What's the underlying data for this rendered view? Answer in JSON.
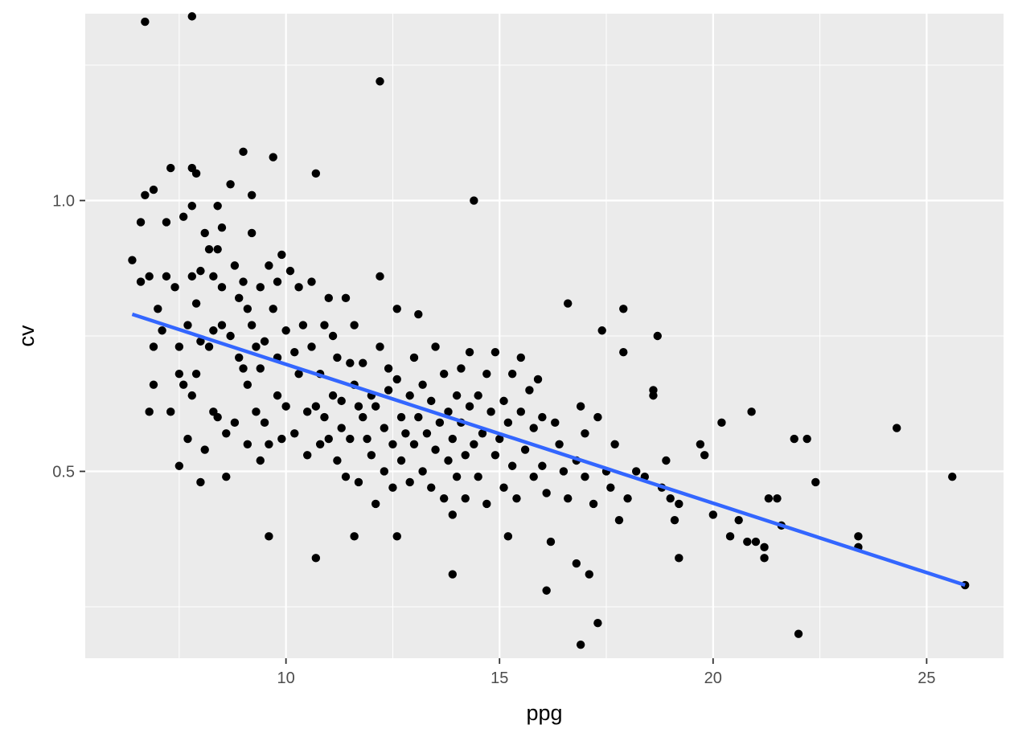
{
  "chart_data": {
    "type": "scatter",
    "title": "",
    "xlabel": "ppg",
    "ylabel": "cv",
    "xlim": [
      5.3,
      26.8
    ],
    "ylim": [
      0.155,
      1.345
    ],
    "xticks": [
      10,
      15,
      20,
      25
    ],
    "xtick_labels": [
      "10",
      "15",
      "20",
      "25"
    ],
    "yticks": [
      0.5,
      1.0
    ],
    "ytick_labels": [
      "0.5",
      "1.0"
    ],
    "grid": true,
    "legend": "none",
    "colors": {
      "panel": "#EBEBEB",
      "grid": "#FFFFFF",
      "points": "#000000",
      "trend": "#3366FF",
      "tick_text": "#4D4D4D"
    },
    "trend_line": {
      "x": [
        6.4,
        25.9
      ],
      "y": [
        0.79,
        0.29
      ]
    },
    "points": [
      [
        6.4,
        0.89
      ],
      [
        6.6,
        0.96
      ],
      [
        6.6,
        0.85
      ],
      [
        6.7,
        1.01
      ],
      [
        6.8,
        0.86
      ],
      [
        6.8,
        0.61
      ],
      [
        6.9,
        1.02
      ],
      [
        6.9,
        0.73
      ],
      [
        6.9,
        0.66
      ],
      [
        7.0,
        0.8
      ],
      [
        7.1,
        0.76
      ],
      [
        7.2,
        0.86
      ],
      [
        7.2,
        0.96
      ],
      [
        7.3,
        1.06
      ],
      [
        7.3,
        0.61
      ],
      [
        7.4,
        0.84
      ],
      [
        7.5,
        0.73
      ],
      [
        7.5,
        0.51
      ],
      [
        7.5,
        0.68
      ],
      [
        7.6,
        0.97
      ],
      [
        7.6,
        0.66
      ],
      [
        7.7,
        0.77
      ],
      [
        7.7,
        0.56
      ],
      [
        7.8,
        0.86
      ],
      [
        7.8,
        0.64
      ],
      [
        7.8,
        0.99
      ],
      [
        7.8,
        1.06
      ],
      [
        7.9,
        0.68
      ],
      [
        7.9,
        0.81
      ],
      [
        7.9,
        1.05
      ],
      [
        8.0,
        0.74
      ],
      [
        8.0,
        0.87
      ],
      [
        8.1,
        0.94
      ],
      [
        8.1,
        0.54
      ],
      [
        8.2,
        0.91
      ],
      [
        8.2,
        0.73
      ],
      [
        8.3,
        0.86
      ],
      [
        8.3,
        0.76
      ],
      [
        8.3,
        0.61
      ],
      [
        8.4,
        0.99
      ],
      [
        8.4,
        0.91
      ],
      [
        8.4,
        0.6
      ],
      [
        8.5,
        0.77
      ],
      [
        8.5,
        0.84
      ],
      [
        8.5,
        0.95
      ],
      [
        8.6,
        0.57
      ],
      [
        8.6,
        0.49
      ],
      [
        8.7,
        1.03
      ],
      [
        8.7,
        0.75
      ],
      [
        8.8,
        0.88
      ],
      [
        8.8,
        0.59
      ],
      [
        8.9,
        0.82
      ],
      [
        8.9,
        0.71
      ],
      [
        9.0,
        1.09
      ],
      [
        9.0,
        0.85
      ],
      [
        9.0,
        0.69
      ],
      [
        9.1,
        0.55
      ],
      [
        9.1,
        0.8
      ],
      [
        9.1,
        0.66
      ],
      [
        9.2,
        1.01
      ],
      [
        9.2,
        0.77
      ],
      [
        9.2,
        0.94
      ],
      [
        9.3,
        0.73
      ],
      [
        9.3,
        0.61
      ],
      [
        9.4,
        0.52
      ],
      [
        9.4,
        0.84
      ],
      [
        9.4,
        0.69
      ],
      [
        9.5,
        0.74
      ],
      [
        9.5,
        0.59
      ],
      [
        9.6,
        0.88
      ],
      [
        9.6,
        0.55
      ],
      [
        9.7,
        0.8
      ],
      [
        9.7,
        1.08
      ],
      [
        9.8,
        0.71
      ],
      [
        9.8,
        0.64
      ],
      [
        9.8,
        0.85
      ],
      [
        9.9,
        0.9
      ],
      [
        9.9,
        0.56
      ],
      [
        10.0,
        0.76
      ],
      [
        10.0,
        0.62
      ],
      [
        10.1,
        0.87
      ],
      [
        10.2,
        0.72
      ],
      [
        10.2,
        0.57
      ],
      [
        10.3,
        0.84
      ],
      [
        10.3,
        0.68
      ],
      [
        10.4,
        0.77
      ],
      [
        10.5,
        0.61
      ],
      [
        10.5,
        0.53
      ],
      [
        10.6,
        0.85
      ],
      [
        10.6,
        0.73
      ],
      [
        10.7,
        0.62
      ],
      [
        10.7,
        1.05
      ],
      [
        10.8,
        0.55
      ],
      [
        10.8,
        0.68
      ],
      [
        10.9,
        0.77
      ],
      [
        10.9,
        0.6
      ],
      [
        11.0,
        0.82
      ],
      [
        11.0,
        0.56
      ],
      [
        11.1,
        0.75
      ],
      [
        11.1,
        0.64
      ],
      [
        11.2,
        0.52
      ],
      [
        11.2,
        0.71
      ],
      [
        11.3,
        0.63
      ],
      [
        11.3,
        0.58
      ],
      [
        11.4,
        0.82
      ],
      [
        11.4,
        0.49
      ],
      [
        11.5,
        0.7
      ],
      [
        11.5,
        0.56
      ],
      [
        11.6,
        0.66
      ],
      [
        11.6,
        0.77
      ],
      [
        11.7,
        0.62
      ],
      [
        11.7,
        0.48
      ],
      [
        11.8,
        0.6
      ],
      [
        11.8,
        0.7
      ],
      [
        11.9,
        0.56
      ],
      [
        12.0,
        0.64
      ],
      [
        12.0,
        0.53
      ],
      [
        12.1,
        0.44
      ],
      [
        12.1,
        0.62
      ],
      [
        12.2,
        0.86
      ],
      [
        12.2,
        0.73
      ],
      [
        12.2,
        1.22
      ],
      [
        12.3,
        0.58
      ],
      [
        12.3,
        0.5
      ],
      [
        12.4,
        0.65
      ],
      [
        12.4,
        0.69
      ],
      [
        12.5,
        0.55
      ],
      [
        12.5,
        0.47
      ],
      [
        12.6,
        0.67
      ],
      [
        12.6,
        0.8
      ],
      [
        12.7,
        0.6
      ],
      [
        12.7,
        0.52
      ],
      [
        12.8,
        0.57
      ],
      [
        12.9,
        0.64
      ],
      [
        12.9,
        0.48
      ],
      [
        13.0,
        0.71
      ],
      [
        13.0,
        0.55
      ],
      [
        13.1,
        0.6
      ],
      [
        13.1,
        0.79
      ],
      [
        13.2,
        0.5
      ],
      [
        13.2,
        0.66
      ],
      [
        13.3,
        0.57
      ],
      [
        13.4,
        0.63
      ],
      [
        13.4,
        0.47
      ],
      [
        13.5,
        0.73
      ],
      [
        13.5,
        0.54
      ],
      [
        13.6,
        0.59
      ],
      [
        13.7,
        0.68
      ],
      [
        13.7,
        0.45
      ],
      [
        13.8,
        0.61
      ],
      [
        13.8,
        0.52
      ],
      [
        13.9,
        0.56
      ],
      [
        13.9,
        0.42
      ],
      [
        14.0,
        0.64
      ],
      [
        14.0,
        0.49
      ],
      [
        14.1,
        0.59
      ],
      [
        14.1,
        0.69
      ],
      [
        14.2,
        0.53
      ],
      [
        14.2,
        0.45
      ],
      [
        14.3,
        0.62
      ],
      [
        14.3,
        0.72
      ],
      [
        14.4,
        0.55
      ],
      [
        14.4,
        1.0
      ],
      [
        14.5,
        0.64
      ],
      [
        14.5,
        0.49
      ],
      [
        14.6,
        0.57
      ],
      [
        14.7,
        0.68
      ],
      [
        14.7,
        0.44
      ],
      [
        14.8,
        0.61
      ],
      [
        14.9,
        0.53
      ],
      [
        14.9,
        0.72
      ],
      [
        15.0,
        0.56
      ],
      [
        15.1,
        0.63
      ],
      [
        15.1,
        0.47
      ],
      [
        15.2,
        0.59
      ],
      [
        15.3,
        0.51
      ],
      [
        15.3,
        0.68
      ],
      [
        15.4,
        0.45
      ],
      [
        15.5,
        0.61
      ],
      [
        15.5,
        0.71
      ],
      [
        15.6,
        0.54
      ],
      [
        15.7,
        0.65
      ],
      [
        15.8,
        0.49
      ],
      [
        15.8,
        0.58
      ],
      [
        15.9,
        0.67
      ],
      [
        16.0,
        0.51
      ],
      [
        16.0,
        0.6
      ],
      [
        16.1,
        0.46
      ],
      [
        16.2,
        0.37
      ],
      [
        16.3,
        0.59
      ],
      [
        16.4,
        0.55
      ],
      [
        16.5,
        0.5
      ],
      [
        16.6,
        0.45
      ],
      [
        16.6,
        0.81
      ],
      [
        16.8,
        0.52
      ],
      [
        16.9,
        0.62
      ],
      [
        17.0,
        0.49
      ],
      [
        17.0,
        0.57
      ],
      [
        17.1,
        0.31
      ],
      [
        17.2,
        0.44
      ],
      [
        17.3,
        0.6
      ],
      [
        17.4,
        0.76
      ],
      [
        17.5,
        0.5
      ],
      [
        17.6,
        0.47
      ],
      [
        17.7,
        0.55
      ],
      [
        17.8,
        0.41
      ],
      [
        17.9,
        0.8
      ],
      [
        17.9,
        0.72
      ],
      [
        18.0,
        0.45
      ],
      [
        18.2,
        0.5
      ],
      [
        18.4,
        0.49
      ],
      [
        18.6,
        0.64
      ],
      [
        18.7,
        0.75
      ],
      [
        18.8,
        0.47
      ],
      [
        18.9,
        0.52
      ],
      [
        19.0,
        0.45
      ],
      [
        19.1,
        0.41
      ],
      [
        19.2,
        0.44
      ],
      [
        19.7,
        0.55
      ],
      [
        19.8,
        0.53
      ],
      [
        20.0,
        0.42
      ],
      [
        20.2,
        0.59
      ],
      [
        20.4,
        0.38
      ],
      [
        20.6,
        0.41
      ],
      [
        20.8,
        0.37
      ],
      [
        20.9,
        0.61
      ],
      [
        21.0,
        0.37
      ],
      [
        21.2,
        0.36
      ],
      [
        21.3,
        0.45
      ],
      [
        21.5,
        0.45
      ],
      [
        21.6,
        0.4
      ],
      [
        21.9,
        0.56
      ],
      [
        22.0,
        0.2
      ],
      [
        22.2,
        0.56
      ],
      [
        22.4,
        0.48
      ],
      [
        23.4,
        0.36
      ],
      [
        23.4,
        0.38
      ],
      [
        24.3,
        0.58
      ],
      [
        25.6,
        0.49
      ],
      [
        25.9,
        0.29
      ],
      [
        6.7,
        1.33
      ],
      [
        7.8,
        1.34
      ],
      [
        10.7,
        0.34
      ],
      [
        9.6,
        0.38
      ],
      [
        16.1,
        0.28
      ],
      [
        16.8,
        0.33
      ],
      [
        16.9,
        0.18
      ],
      [
        17.3,
        0.22
      ],
      [
        19.2,
        0.34
      ],
      [
        21.2,
        0.34
      ],
      [
        18.6,
        0.65
      ],
      [
        13.9,
        0.31
      ],
      [
        15.2,
        0.38
      ],
      [
        12.6,
        0.38
      ],
      [
        11.6,
        0.38
      ],
      [
        8.0,
        0.48
      ]
    ]
  }
}
